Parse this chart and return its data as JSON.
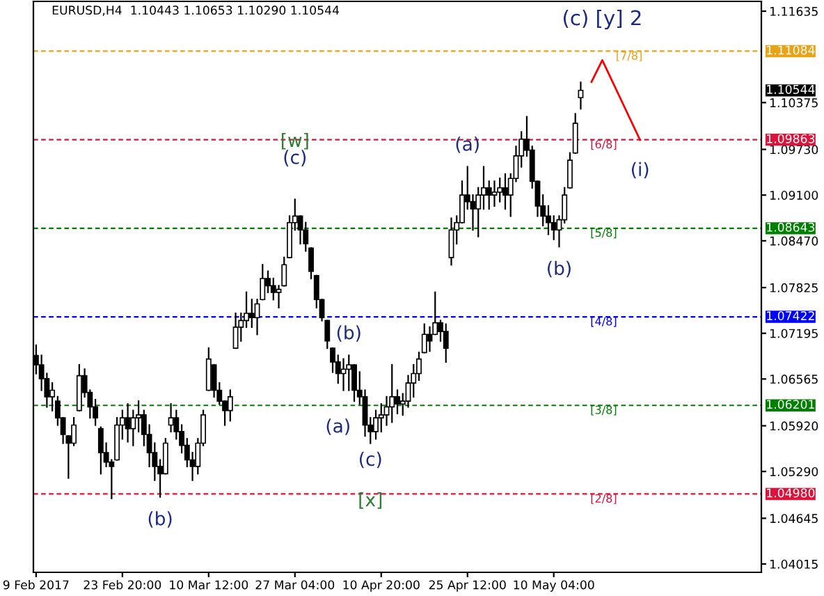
{
  "chart_data": {
    "type": "candlestick",
    "title": "EURUSD,H4  1.10443 1.10653 1.10290 1.10544",
    "color": "#000000",
    "categories": [
      "9 Feb 2017",
      null,
      null,
      null,
      null,
      null,
      null,
      null,
      null,
      null,
      null,
      null,
      null,
      null,
      null,
      null,
      "23 Feb 20:00",
      null,
      null,
      null,
      null,
      null,
      null,
      null,
      null,
      null,
      null,
      null,
      null,
      null,
      null,
      null,
      "10 Mar 12:00",
      null,
      null,
      null,
      null,
      null,
      null,
      null,
      null,
      null,
      null,
      null,
      null,
      null,
      null,
      null,
      "27 Mar 04:00",
      null,
      null,
      null,
      null,
      null,
      null,
      null,
      null,
      null,
      null,
      null,
      null,
      null,
      null,
      null,
      "10 Apr 20:00",
      null,
      null,
      null,
      null,
      null,
      null,
      null,
      null,
      null,
      null,
      null,
      null,
      null,
      null,
      null,
      "25 Apr 12:00",
      null,
      null,
      null,
      null,
      null,
      null,
      null,
      null,
      null,
      null,
      null,
      null,
      null,
      null,
      null,
      "10 May 04:00",
      null,
      null,
      null,
      null,
      null,
      null,
      null,
      null,
      null,
      null,
      null,
      null,
      null,
      null,
      null,
      null,
      null,
      null,
      null,
      null,
      null,
      null,
      null,
      null,
      null,
      null,
      null,
      null,
      null,
      null,
      null,
      null,
      null,
      null,
      null,
      null,
      null,
      null
    ],
    "ohlc": [
      [
        1.0689,
        1.0703,
        1.0664,
        1.0676
      ],
      [
        1.0676,
        1.0689,
        1.0641,
        1.0657
      ],
      [
        1.0657,
        1.0664,
        1.0618,
        1.0632
      ],
      [
        1.0632,
        1.0651,
        1.0613,
        1.0641
      ],
      [
        1.0626,
        1.0632,
        1.0593,
        1.0603
      ],
      [
        1.0603,
        1.0603,
        1.0568,
        1.058
      ],
      [
        1.0578,
        1.0578,
        1.052,
        1.0568
      ],
      [
        1.0568,
        1.0603,
        1.0565,
        1.0593
      ],
      [
        1.0613,
        1.0676,
        1.0613,
        1.0661
      ],
      [
        1.0661,
        1.067,
        1.0632,
        1.0638
      ],
      [
        1.0638,
        1.0641,
        1.0603,
        1.0618
      ],
      [
        1.0618,
        1.0628,
        1.0593,
        1.0603
      ],
      [
        1.0588,
        1.059,
        1.0526,
        1.0555
      ],
      [
        1.0555,
        1.0568,
        1.0536,
        1.0542
      ],
      [
        1.0542,
        1.0545,
        1.0492,
        1.0536
      ],
      [
        1.0545,
        1.0603,
        1.0545,
        1.0593
      ],
      [
        1.0593,
        1.0613,
        1.0574,
        1.0603
      ],
      [
        1.0603,
        1.0622,
        1.057,
        1.0588
      ],
      [
        1.0588,
        1.0613,
        1.0565,
        1.0603
      ],
      [
        1.0603,
        1.0626,
        1.0584,
        1.0607
      ],
      [
        1.0607,
        1.0613,
        1.0565,
        1.058
      ],
      [
        1.058,
        1.0593,
        1.0536,
        1.0555
      ],
      [
        1.0555,
        1.0568,
        1.0517,
        1.0536
      ],
      [
        1.0536,
        1.0545,
        1.0494,
        1.0526
      ],
      [
        1.0526,
        1.0574,
        1.0526,
        1.0568
      ],
      [
        1.0593,
        1.0622,
        1.0584,
        1.0603
      ],
      [
        1.0603,
        1.0613,
        1.0574,
        1.0584
      ],
      [
        1.0584,
        1.0593,
        1.0555,
        1.0565
      ],
      [
        1.0565,
        1.0574,
        1.0536,
        1.0545
      ],
      [
        1.0545,
        1.0555,
        1.0517,
        1.0536
      ],
      [
        1.0536,
        1.0574,
        1.0526,
        1.0568
      ],
      [
        1.0568,
        1.0613,
        1.0565,
        1.0607
      ],
      [
        1.0641,
        1.0699,
        1.0641,
        1.0684
      ],
      [
        1.0676,
        1.0676,
        1.0632,
        1.0641
      ],
      [
        1.0641,
        1.0651,
        1.0622,
        1.0626
      ],
      [
        1.0626,
        1.0626,
        1.0593,
        1.0613
      ],
      [
        1.0613,
        1.0641,
        1.0599,
        1.0632
      ],
      [
        1.0699,
        1.0747,
        1.0699,
        1.0728
      ],
      [
        1.0728,
        1.0747,
        1.0709,
        1.0737
      ],
      [
        1.0737,
        1.0776,
        1.0728,
        1.0747
      ],
      [
        1.0747,
        1.0766,
        1.0728,
        1.0741
      ],
      [
        1.0741,
        1.0766,
        1.0718,
        1.076
      ],
      [
        1.0766,
        1.0814,
        1.0766,
        1.0795
      ],
      [
        1.0795,
        1.0805,
        1.0776,
        1.0785
      ],
      [
        1.0785,
        1.0795,
        1.0766,
        1.0776
      ],
      [
        1.0776,
        1.0785,
        1.0755,
        1.078
      ],
      [
        1.0785,
        1.0824,
        1.0785,
        1.0814
      ],
      [
        1.0824,
        1.0881,
        1.0824,
        1.0872
      ],
      [
        1.0872,
        1.0904,
        1.0862,
        1.0881
      ],
      [
        1.0881,
        1.0881,
        1.0843,
        1.0862
      ],
      [
        1.0862,
        1.0872,
        1.0833,
        1.0843
      ],
      [
        1.0837,
        1.0837,
        1.0795,
        1.0805
      ],
      [
        1.0799,
        1.0799,
        1.0755,
        1.0766
      ],
      [
        1.0766,
        1.0766,
        1.0737,
        1.0741
      ],
      [
        1.0737,
        1.0737,
        1.0699,
        1.0709
      ],
      [
        1.0699,
        1.0699,
        1.0666,
        1.068
      ],
      [
        1.068,
        1.0689,
        1.0651,
        1.0664
      ],
      [
        1.0664,
        1.0684,
        1.0641,
        1.067
      ],
      [
        1.067,
        1.0689,
        1.0641,
        1.0676
      ],
      [
        1.0676,
        1.0676,
        1.0626,
        1.0641
      ],
      [
        1.0641,
        1.0666,
        1.0622,
        1.0632
      ],
      [
        1.0632,
        1.0641,
        1.0578,
        1.0593
      ],
      [
        1.0593,
        1.0603,
        1.0568,
        1.0584
      ],
      [
        1.0584,
        1.0613,
        1.0574,
        1.0603
      ],
      [
        1.0603,
        1.0622,
        1.0584,
        1.0607
      ],
      [
        1.0607,
        1.0632,
        1.0593,
        1.0618
      ],
      [
        1.0618,
        1.0676,
        1.0597,
        1.0632
      ],
      [
        1.0632,
        1.0641,
        1.0609,
        1.0622
      ],
      [
        1.0622,
        1.0636,
        1.0607,
        1.0626
      ],
      [
        1.0626,
        1.0661,
        1.0618,
        1.0651
      ],
      [
        1.0651,
        1.0676,
        1.0632,
        1.0664
      ],
      [
        1.0664,
        1.0693,
        1.0655,
        1.0684
      ],
      [
        1.0693,
        1.0732,
        1.0693,
        1.0718
      ],
      [
        1.0718,
        1.0728,
        1.0695,
        1.0709
      ],
      [
        1.0718,
        1.0776,
        1.0718,
        1.0734
      ],
      [
        1.0734,
        1.0737,
        1.0709,
        1.0722
      ],
      [
        1.0722,
        1.0732,
        1.068,
        1.0699
      ],
      [
        1.0824,
        1.0878,
        1.0814,
        1.0862
      ],
      [
        1.0862,
        1.0881,
        1.0843,
        1.0872
      ],
      [
        1.0872,
        1.0929,
        1.0872,
        1.091
      ],
      [
        1.091,
        1.0949,
        1.0891,
        1.0901
      ],
      [
        1.0901,
        1.091,
        1.0862,
        1.0891
      ],
      [
        1.0891,
        1.092,
        1.0853,
        1.091
      ],
      [
        1.091,
        1.0949,
        1.0891,
        1.092
      ],
      [
        1.092,
        1.0929,
        1.0891,
        1.091
      ],
      [
        1.091,
        1.0929,
        1.0895,
        1.0914
      ],
      [
        1.0914,
        1.0933,
        1.0901,
        1.092
      ],
      [
        1.092,
        1.0939,
        1.0891,
        1.091
      ],
      [
        1.091,
        1.0939,
        1.0881,
        1.0933
      ],
      [
        1.0933,
        1.0977,
        1.0929,
        1.0964
      ],
      [
        1.0964,
        1.0997,
        1.0949,
        1.0987
      ],
      [
        1.0987,
        1.1018,
        1.0964,
        1.0972
      ],
      [
        1.0972,
        1.0977,
        1.092,
        1.0929
      ],
      [
        1.0929,
        1.0929,
        1.0881,
        1.0895
      ],
      [
        1.0895,
        1.091,
        1.0868,
        1.0881
      ],
      [
        1.0881,
        1.0895,
        1.0856,
        1.0872
      ],
      [
        1.0872,
        1.0881,
        1.0849,
        1.0862
      ],
      [
        1.0862,
        1.0881,
        1.0839,
        1.0876
      ],
      [
        1.0876,
        1.092,
        1.0872,
        1.091
      ],
      [
        1.092,
        1.0968,
        1.092,
        1.0958
      ],
      [
        1.0968,
        1.1022,
        1.0968,
        1.1009
      ],
      [
        1.10443,
        1.10653,
        1.1029,
        1.10544
      ],
      null,
      null,
      null,
      null,
      null,
      null,
      null,
      null,
      null,
      null,
      null,
      null,
      null,
      null,
      null,
      null,
      null,
      null,
      null,
      null,
      null,
      null,
      null,
      null,
      null,
      null,
      null,
      null,
      null,
      null,
      null,
      null,
      null
    ],
    "series": [
      {
        "type": "line",
        "color": "#ff0000",
        "values": [
          null,
          null,
          null,
          null,
          null,
          null,
          null,
          null,
          null,
          null,
          null,
          null,
          null,
          null,
          null,
          null,
          null,
          null,
          null,
          null,
          null,
          null,
          null,
          null,
          null,
          null,
          null,
          null,
          null,
          null,
          null,
          null,
          null,
          null,
          null,
          null,
          null,
          null,
          null,
          null,
          null,
          null,
          null,
          null,
          null,
          null,
          null,
          null,
          null,
          null,
          null,
          null,
          null,
          null,
          null,
          null,
          null,
          null,
          null,
          null,
          null,
          null,
          null,
          null,
          null,
          null,
          null,
          null,
          null,
          null,
          null,
          null,
          null,
          null,
          null,
          null,
          null,
          null,
          null,
          null,
          null,
          null,
          null,
          null,
          null,
          null,
          null,
          null,
          null,
          null,
          null,
          null,
          null,
          null,
          null,
          null,
          null,
          null,
          null,
          null,
          null,
          null,
          null,
          1.1066,
          null,
          1.1096,
          null,
          null,
          null,
          null,
          null,
          null,
          1.0986,
          null,
          null,
          null,
          null,
          null,
          null,
          null,
          null,
          null,
          null,
          null,
          null,
          null,
          null,
          null,
          null,
          null,
          null,
          null,
          null,
          null,
          null
        ]
      }
    ],
    "ylim": [
      1.039,
      1.1177
    ],
    "yticks": [
      1.11635,
      1.10375,
      {
        "value": 1.0973,
        "label": "1.09730"
      },
      {
        "value": 1.091,
        "label": "1.09100"
      },
      {
        "value": 1.0847,
        "label": "1.08470"
      },
      1.07825,
      1.07195,
      1.06565,
      {
        "value": 1.0592,
        "label": "1.05920"
      },
      {
        "value": 1.0529,
        "label": "1.05290"
      },
      1.04645,
      1.04015
    ],
    "ref_lines": [
      {
        "axis": "y",
        "value": 1.11084,
        "label": "1.11084",
        "color": "#e8a317",
        "line_style": "dashed"
      },
      {
        "axis": "y",
        "value": 1.09863,
        "label": "1.09863",
        "color": "#dc143c",
        "line_style": "dashed"
      },
      {
        "axis": "y",
        "value": 1.08643,
        "label": "1.08643",
        "color": "#008000",
        "line_style": "dashed"
      },
      {
        "axis": "y",
        "value": 1.07422,
        "label": "1.07422",
        "color": "#0000ff",
        "line_style": "dashed"
      },
      {
        "axis": "y",
        "value": 1.06201,
        "label": "1.06201",
        "color": "#008000",
        "line_style": "dashed"
      },
      {
        "axis": "y",
        "value": 1.0498,
        "label": "1.04980",
        "color": "#dc143c",
        "line_style": "dashed"
      }
    ],
    "annotations": [
      {
        "text": "[7/8]",
        "y": 1.11084
      },
      {
        "text": "[6/8]",
        "y": 1.09863
      },
      {
        "text": "[5/8]",
        "y": 1.08643
      },
      {
        "text": "[4/8]",
        "y": 1.07422
      },
      {
        "text": "[3/8]",
        "y": 1.06201
      },
      {
        "text": "[2/8]",
        "y": 1.0498
      },
      "1.10544",
      {
        "text": "(b)",
        "y": 1.0494
      },
      "[w]",
      {
        "text": "(c)",
        "y": 1.0904
      },
      {
        "text": "(a)",
        "y": 1.0651
      },
      {
        "text": "(b)",
        "y": 1.0689
      },
      {
        "text": "(c)",
        "y": 1.0568
      },
      {
        "text": "[x]",
        "y": 1.0568
      },
      {
        "text": "(a)",
        "y": 1.0949
      },
      {
        "text": "(b)",
        "y": 1.0839
      },
      {
        "text": "(c) [y] 2",
        "y": 1.1096
      },
      {
        "text": "(i)",
        "y": 1.0986
      }
    ],
    "grid": false,
    "legend": false
  }
}
